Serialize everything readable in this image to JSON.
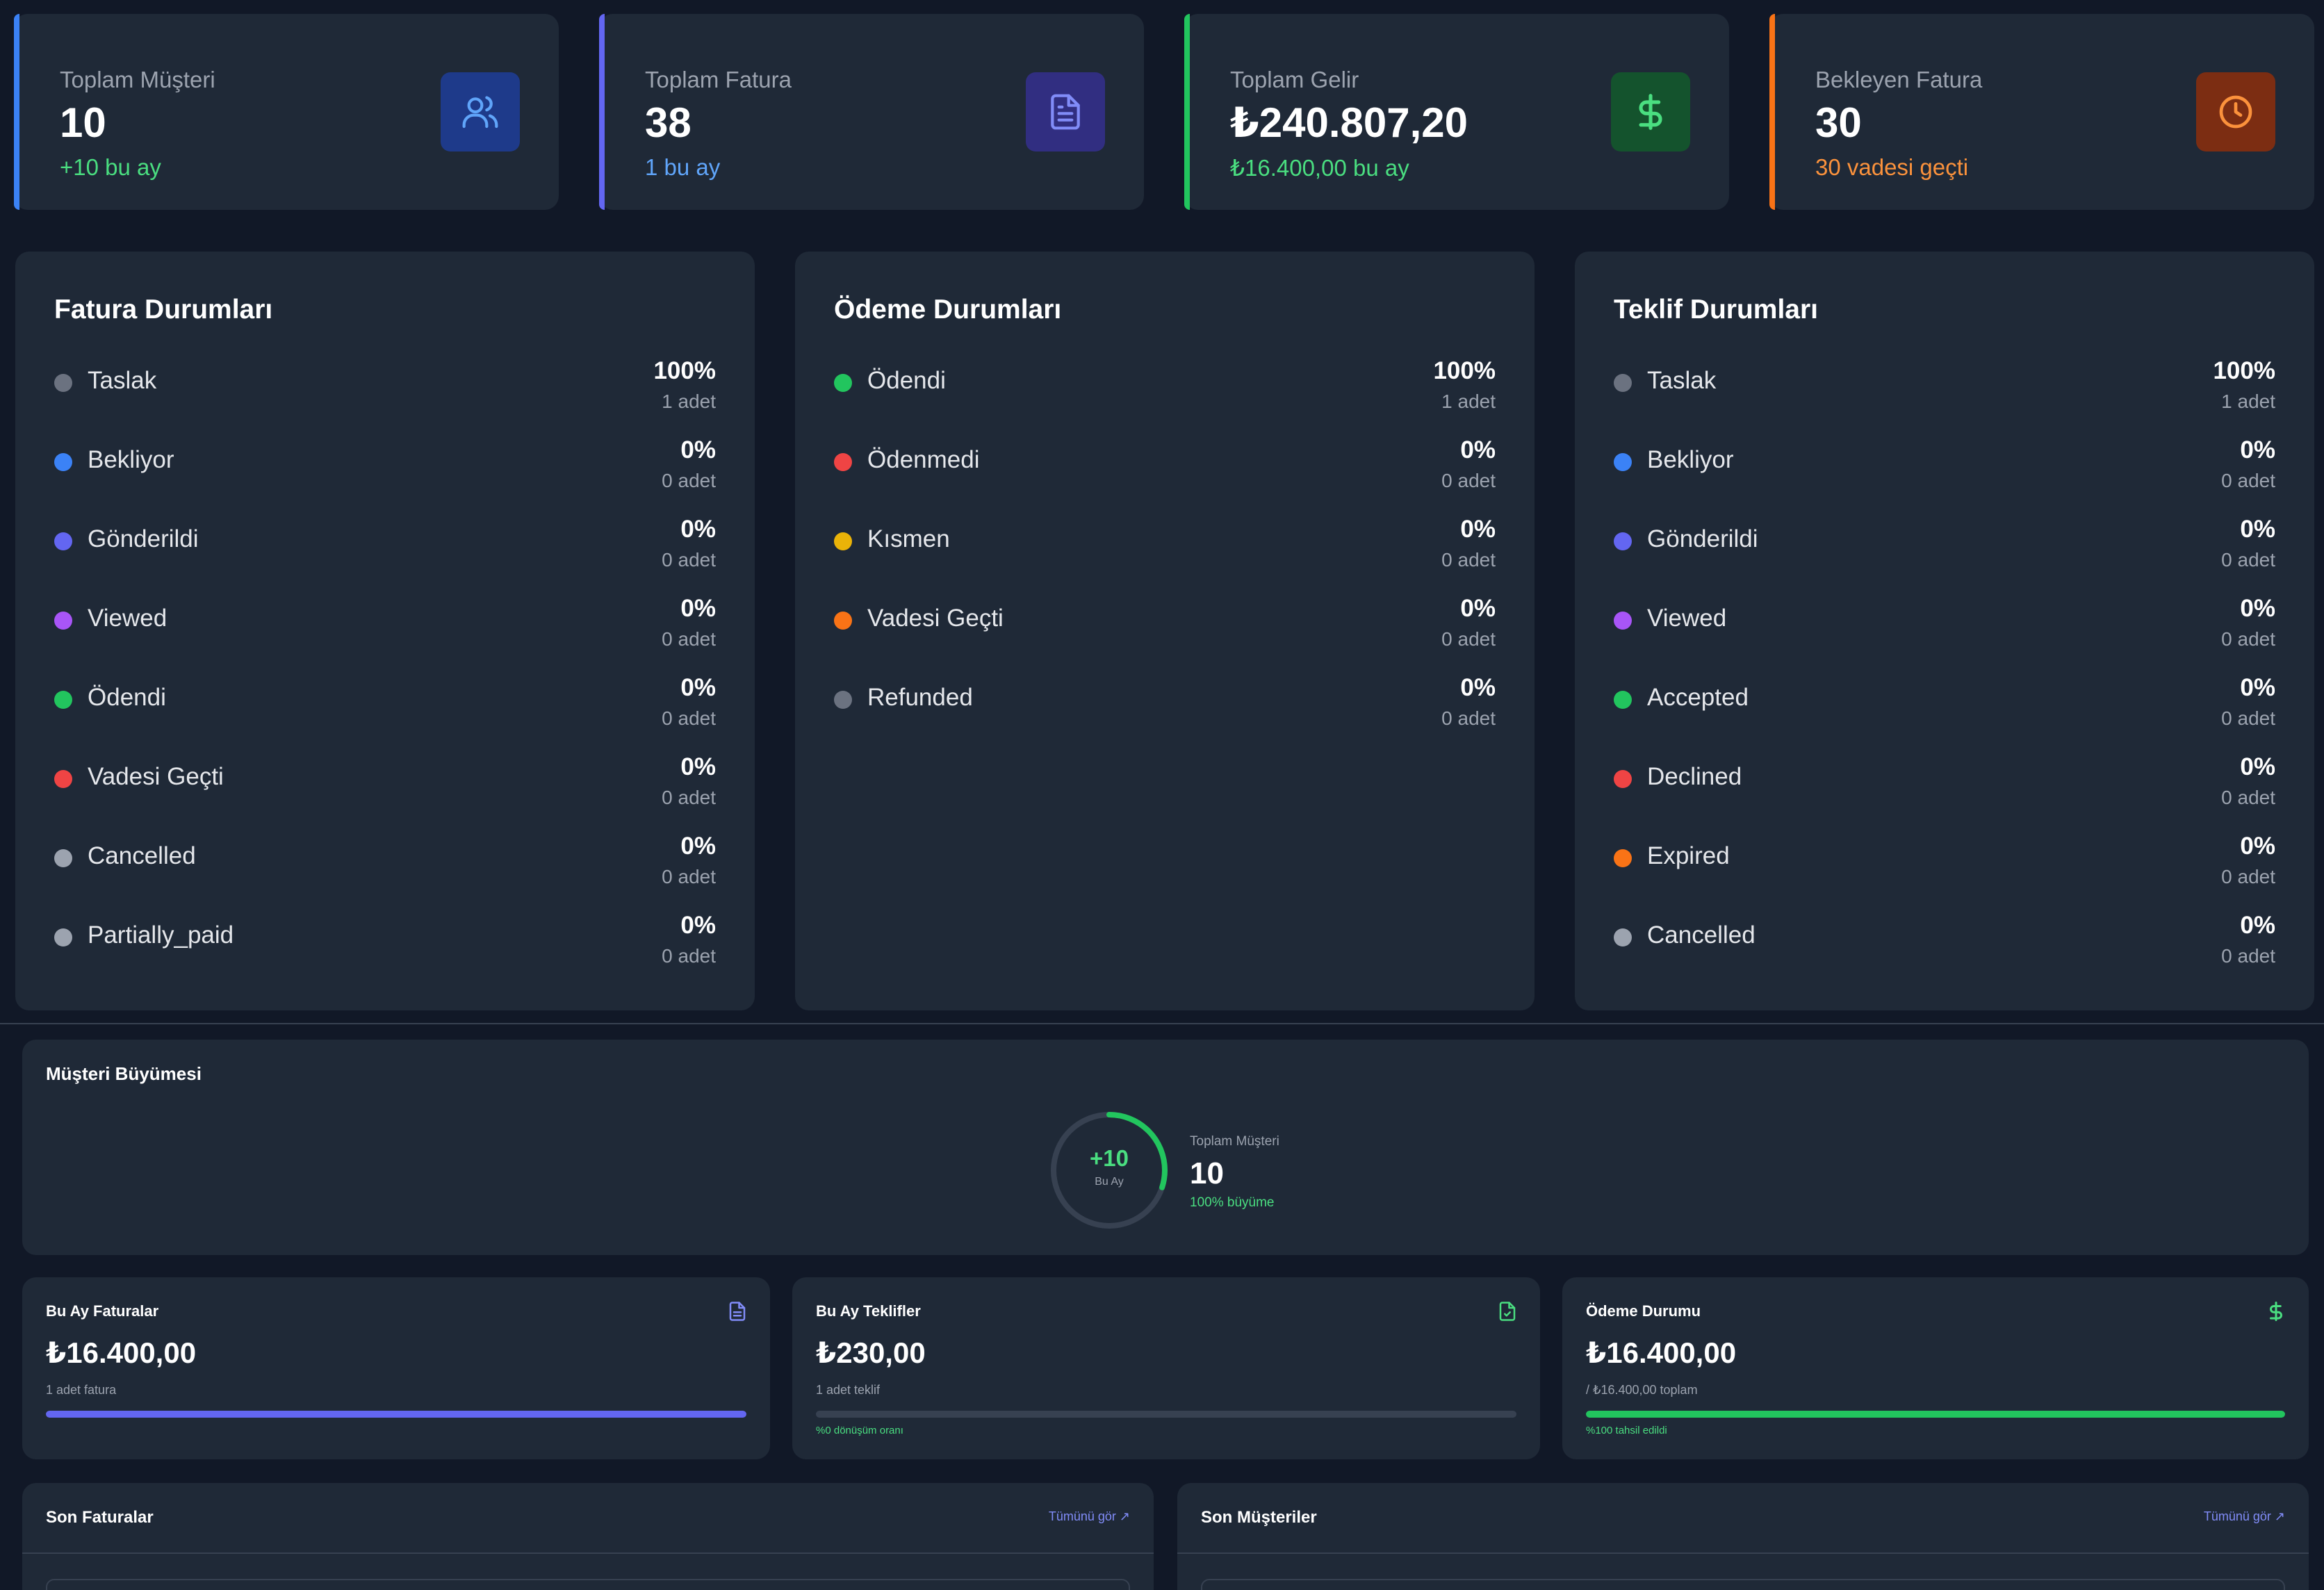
{
  "stats": [
    {
      "label": "Toplam Müşteri",
      "value": "10",
      "sub": "+10 bu ay",
      "accent": "#3b82f6",
      "sub_color": "#4ade80",
      "icon_bg": "#1e3a8a",
      "icon_color": "#60a5fa",
      "icon": "users-icon"
    },
    {
      "label": "Toplam Fatura",
      "value": "38",
      "sub": "1 bu ay",
      "accent": "#6366f1",
      "sub_color": "#60a5fa",
      "icon_bg": "#312e81",
      "icon_color": "#818cf8",
      "icon": "document-icon"
    },
    {
      "label": "Toplam Gelir",
      "value": "₺240.807,20",
      "sub": "₺16.400,00 bu ay",
      "accent": "#22c55e",
      "sub_color": "#4ade80",
      "icon_bg": "#14532d",
      "icon_color": "#4ade80",
      "icon": "dollar-icon"
    },
    {
      "label": "Bekleyen Fatura",
      "value": "30",
      "sub": "30 vadesi geçti",
      "accent": "#f97316",
      "sub_color": "#fb923c",
      "icon_bg": "#7c2d12",
      "icon_color": "#fb923c",
      "icon": "clock-icon"
    }
  ],
  "panels": [
    {
      "title": "Fatura Durumları",
      "rows": [
        {
          "name": "Taslak",
          "pct": "100%",
          "count": "1 adet",
          "color": "#6b7280"
        },
        {
          "name": "Bekliyor",
          "pct": "0%",
          "count": "0 adet",
          "color": "#3b82f6"
        },
        {
          "name": "Gönderildi",
          "pct": "0%",
          "count": "0 adet",
          "color": "#6366f1"
        },
        {
          "name": "Viewed",
          "pct": "0%",
          "count": "0 adet",
          "color": "#a855f7"
        },
        {
          "name": "Ödendi",
          "pct": "0%",
          "count": "0 adet",
          "color": "#22c55e"
        },
        {
          "name": "Vadesi Geçti",
          "pct": "0%",
          "count": "0 adet",
          "color": "#ef4444"
        },
        {
          "name": "Cancelled",
          "pct": "0%",
          "count": "0 adet",
          "color": "#9ca3af"
        },
        {
          "name": "Partially_paid",
          "pct": "0%",
          "count": "0 adet",
          "color": "#9ca3af"
        }
      ]
    },
    {
      "title": "Ödeme Durumları",
      "rows": [
        {
          "name": "Ödendi",
          "pct": "100%",
          "count": "1 adet",
          "color": "#22c55e"
        },
        {
          "name": "Ödenmedi",
          "pct": "0%",
          "count": "0 adet",
          "color": "#ef4444"
        },
        {
          "name": "Kısmen",
          "pct": "0%",
          "count": "0 adet",
          "color": "#eab308"
        },
        {
          "name": "Vadesi Geçti",
          "pct": "0%",
          "count": "0 adet",
          "color": "#f97316"
        },
        {
          "name": "Refunded",
          "pct": "0%",
          "count": "0 adet",
          "color": "#6b7280"
        }
      ]
    },
    {
      "title": "Teklif Durumları",
      "rows": [
        {
          "name": "Taslak",
          "pct": "100%",
          "count": "1 adet",
          "color": "#6b7280"
        },
        {
          "name": "Bekliyor",
          "pct": "0%",
          "count": "0 adet",
          "color": "#3b82f6"
        },
        {
          "name": "Gönderildi",
          "pct": "0%",
          "count": "0 adet",
          "color": "#6366f1"
        },
        {
          "name": "Viewed",
          "pct": "0%",
          "count": "0 adet",
          "color": "#a855f7"
        },
        {
          "name": "Accepted",
          "pct": "0%",
          "count": "0 adet",
          "color": "#22c55e"
        },
        {
          "name": "Declined",
          "pct": "0%",
          "count": "0 adet",
          "color": "#ef4444"
        },
        {
          "name": "Expired",
          "pct": "0%",
          "count": "0 adet",
          "color": "#f97316"
        },
        {
          "name": "Cancelled",
          "pct": "0%",
          "count": "0 adet",
          "color": "#9ca3af"
        }
      ]
    }
  ],
  "growth": {
    "title": "Müşteri Büyümesi",
    "ring_value": "+10",
    "ring_label": "Bu Ay",
    "ring_progress": 0.3,
    "total_label": "Toplam Müşteri",
    "total_value": "10",
    "growth_text": "100% büyüme"
  },
  "month_cards": [
    {
      "title": "Bu Ay Faturalar",
      "value": "₺16.400,00",
      "sub": "1 adet fatura",
      "note": "",
      "progress": 1.0,
      "bar_color": "#6366f1",
      "icon": "document-icon",
      "icon_color": "#818cf8"
    },
    {
      "title": "Bu Ay Teklifler",
      "value": "₺230,00",
      "sub": "1 adet teklif",
      "note": "%0 dönüşüm oranı",
      "progress": 0.0,
      "bar_color": "#22c55e",
      "icon": "document-check-icon",
      "icon_color": "#4ade80"
    },
    {
      "title": "Ödeme Durumu",
      "value": "₺16.400,00",
      "sub": "/ ₺16.400,00 toplam",
      "note": "%100 tahsil edildi",
      "progress": 1.0,
      "bar_color": "#22c55e",
      "icon": "dollar-icon",
      "icon_color": "#4ade80"
    }
  ],
  "recent": [
    {
      "title": "Son Faturalar",
      "link": "Tümünü gör ↗"
    },
    {
      "title": "Son Müşteriler",
      "link": "Tümünü gör ↗"
    }
  ]
}
